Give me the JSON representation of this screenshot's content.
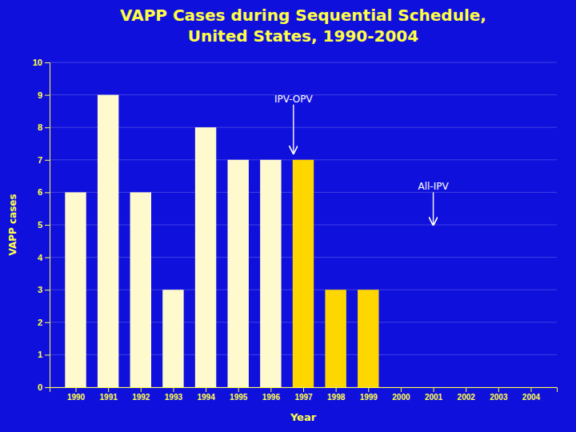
{
  "chart_data": {
    "type": "bar",
    "title": "VAPP Cases during Sequential Schedule,\nUnited States, 1990-2004",
    "x_label": "Year",
    "y_label": "VAPP cases",
    "x": [
      1990,
      1991,
      1992,
      1993,
      1994,
      1995,
      1996,
      1997,
      1998,
      1999,
      2000,
      2001,
      2002,
      2003,
      2004
    ],
    "values": [
      6,
      9,
      6,
      3,
      8,
      7,
      7,
      7,
      3,
      3,
      0,
      0,
      0,
      0,
      0
    ],
    "colors": [
      "#FFFACD",
      "#FFFACD",
      "#FFFACD",
      "#FFFACD",
      "#FFFACD",
      "#FFFACD",
      "#FFFACD",
      "#FFD700",
      "#FFD700",
      "#FFD700",
      "#FFD700",
      "#FFD700",
      "#FFD700",
      "#FFD700",
      "#FFD700"
    ],
    "xlim": [
      1989.2,
      2004.8
    ],
    "xticks": [
      1990,
      1991,
      1992,
      1993,
      1994,
      1995,
      1996,
      1997,
      1998,
      1999,
      2000,
      2001,
      2002,
      2003,
      2004
    ],
    "ylim": [
      0,
      10
    ],
    "yticks": [
      0,
      1,
      2,
      3,
      4,
      5,
      6,
      7,
      8,
      9,
      10
    ],
    "grid": true,
    "annotations": [
      {
        "text": "IPV-OPV",
        "x": 1996.7,
        "y": 8.7,
        "arrow_y": 7.2
      },
      {
        "text": "All-IPV",
        "x": 2001.0,
        "y": 6.0,
        "arrow_y": 5.0
      }
    ]
  }
}
